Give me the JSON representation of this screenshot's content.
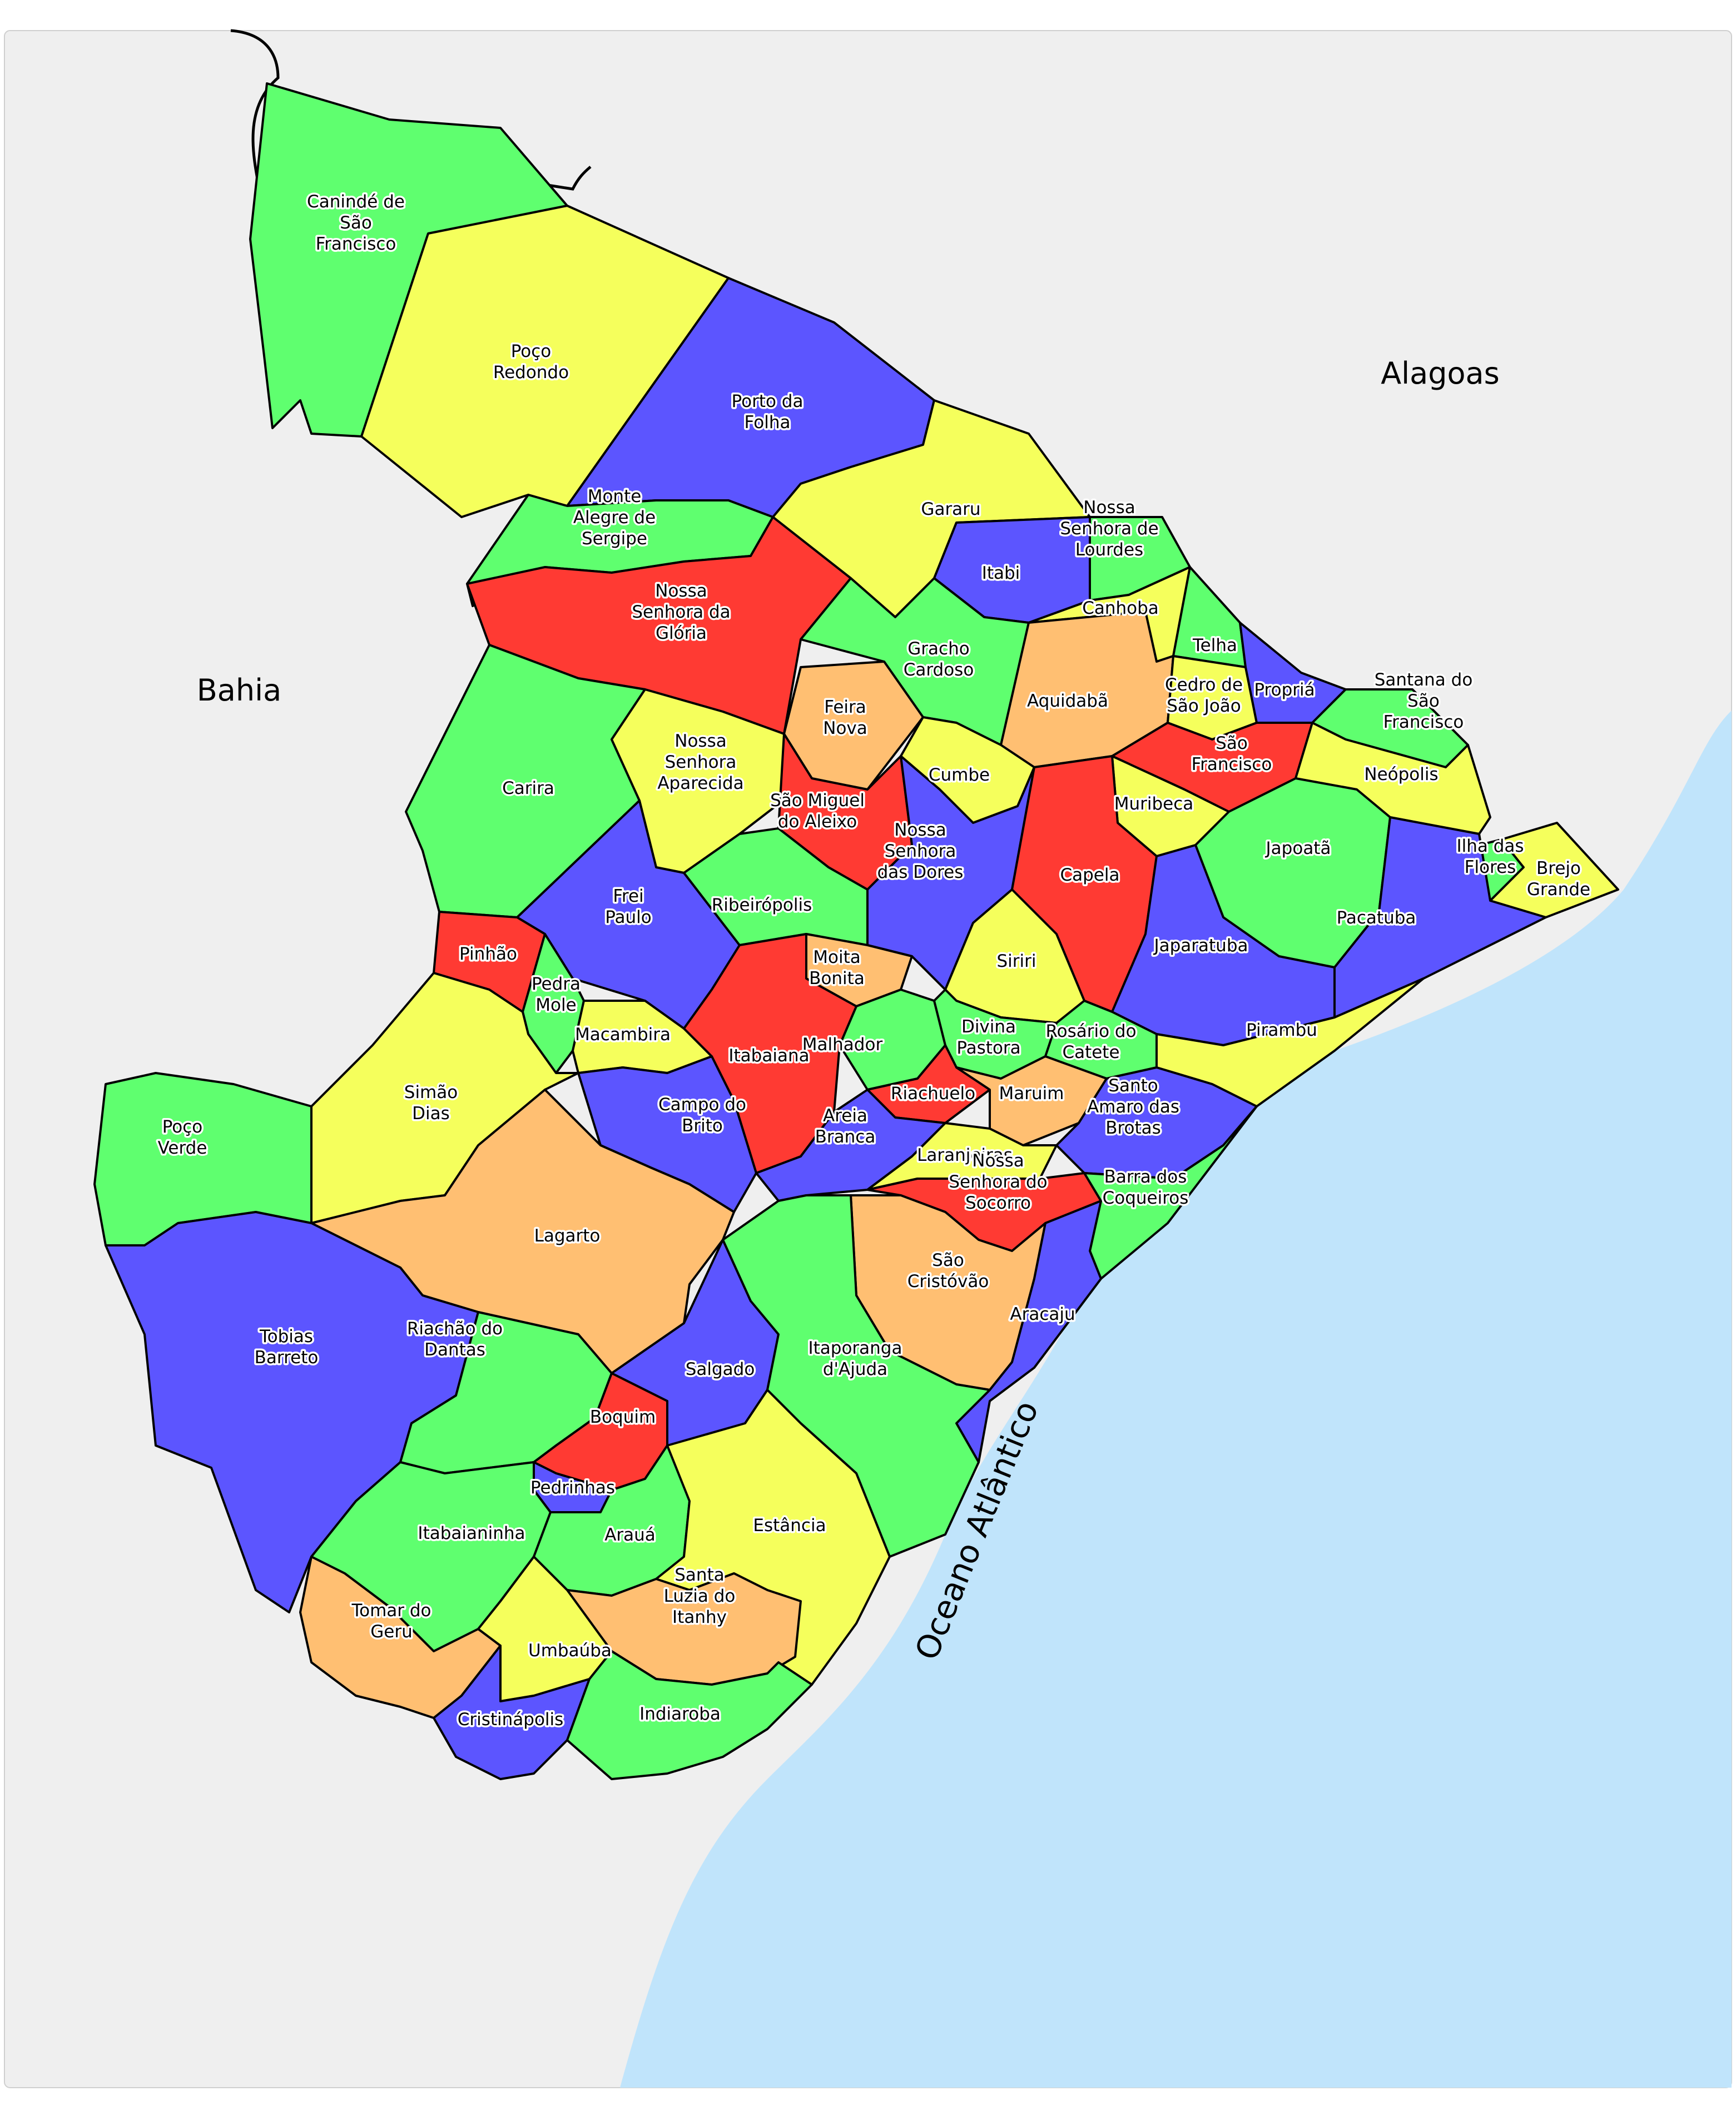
{
  "colors": {
    "green": "#5fff6f",
    "yellow": "#f5ff5c",
    "blue": "#5c55ff",
    "red": "#ff3a33",
    "orange": "#ffbf72",
    "ocean": "#c0e4fb",
    "neighbor": "#efefef"
  },
  "regions": {
    "bahia": "Bahia",
    "alagoas": "Alagoas",
    "ocean": "Oceano Atlântico"
  },
  "municipalities": [
    {
      "id": "caninde",
      "name": "Canindé de São Francisco",
      "lines": [
        "Canindé de",
        "São",
        "Francisco"
      ],
      "color": "green"
    },
    {
      "id": "poco-redondo",
      "name": "Poço Redondo",
      "lines": [
        "Poço",
        "Redondo"
      ],
      "color": "yellow"
    },
    {
      "id": "porto-da-folha",
      "name": "Porto da Folha",
      "lines": [
        "Porto da",
        "Folha"
      ],
      "color": "blue"
    },
    {
      "id": "gararu",
      "name": "Gararu",
      "lines": [
        "Gararu"
      ],
      "color": "yellow"
    },
    {
      "id": "monte-alegre",
      "name": "Monte Alegre de Sergipe",
      "lines": [
        "Monte",
        "Alegre de",
        "Sergipe"
      ],
      "color": "green"
    },
    {
      "id": "nsra-gloria",
      "name": "Nossa Senhora da Glória",
      "lines": [
        "Nossa",
        "Senhora da",
        "Glória"
      ],
      "color": "red"
    },
    {
      "id": "itabi",
      "name": "Itabi",
      "lines": [
        "Itabi"
      ],
      "color": "blue"
    },
    {
      "id": "nsra-lourdes",
      "name": "Nossa Senhora de Lourdes",
      "lines": [
        "Nossa",
        "Senhora de",
        "Lourdes"
      ],
      "color": "green"
    },
    {
      "id": "canhoba",
      "name": "Canhoba",
      "lines": [
        "Canhoba"
      ],
      "color": "yellow"
    },
    {
      "id": "telha",
      "name": "Telha",
      "lines": [
        "Telha"
      ],
      "color": "green"
    },
    {
      "id": "gracho-cardoso",
      "name": "Gracho Cardoso",
      "lines": [
        "Gracho",
        "Cardoso"
      ],
      "color": "green"
    },
    {
      "id": "aquidaba",
      "name": "Aquidabã",
      "lines": [
        "Aquidabã"
      ],
      "color": "orange"
    },
    {
      "id": "cedro",
      "name": "Cedro de São João",
      "lines": [
        "Cedro de",
        "São João"
      ],
      "color": "yellow"
    },
    {
      "id": "propria",
      "name": "Propriá",
      "lines": [
        "Propriá"
      ],
      "color": "blue"
    },
    {
      "id": "santana",
      "name": "Santana do São Francisco",
      "lines": [
        "Santana do",
        "São",
        "Francisco"
      ],
      "color": "green"
    },
    {
      "id": "sao-francisco",
      "name": "São Francisco",
      "lines": [
        "São",
        "Francisco"
      ],
      "color": "red"
    },
    {
      "id": "neopolis",
      "name": "Neópolis",
      "lines": [
        "Neópolis"
      ],
      "color": "yellow"
    },
    {
      "id": "feira-nova",
      "name": "Feira Nova",
      "lines": [
        "Feira",
        "Nova"
      ],
      "color": "orange"
    },
    {
      "id": "cumbe",
      "name": "Cumbe",
      "lines": [
        "Cumbe"
      ],
      "color": "yellow"
    },
    {
      "id": "muribeca",
      "name": "Muribeca",
      "lines": [
        "Muribeca"
      ],
      "color": "yellow"
    },
    {
      "id": "carira",
      "name": "Carira",
      "lines": [
        "Carira"
      ],
      "color": "green"
    },
    {
      "id": "nsra-aparecida",
      "name": "Nossa Senhora Aparecida",
      "lines": [
        "Nossa",
        "Senhora",
        "Aparecida"
      ],
      "color": "yellow"
    },
    {
      "id": "sao-miguel",
      "name": "São Miguel do Aleixo",
      "lines": [
        "São Miguel",
        "do Aleixo"
      ],
      "color": "red"
    },
    {
      "id": "nsra-dores",
      "name": "Nossa Senhora das Dores",
      "lines": [
        "Nossa",
        "Senhora",
        "das Dores"
      ],
      "color": "blue"
    },
    {
      "id": "capela",
      "name": "Capela",
      "lines": [
        "Capela"
      ],
      "color": "red"
    },
    {
      "id": "japoata",
      "name": "Japoatã",
      "lines": [
        "Japoatã"
      ],
      "color": "green"
    },
    {
      "id": "ilha-flores",
      "name": "Ilha das Flores",
      "lines": [
        "Ilha das",
        "Flores"
      ],
      "color": "green"
    },
    {
      "id": "brejo-grande",
      "name": "Brejo Grande",
      "lines": [
        "Brejo",
        "Grande"
      ],
      "color": "yellow"
    },
    {
      "id": "frei-paulo",
      "name": "Frei Paulo",
      "lines": [
        "Frei",
        "Paulo"
      ],
      "color": "blue"
    },
    {
      "id": "ribeiropolis",
      "name": "Ribeirópolis",
      "lines": [
        "Ribeirópolis"
      ],
      "color": "green"
    },
    {
      "id": "pinhao",
      "name": "Pinhão",
      "lines": [
        "Pinhão"
      ],
      "color": "red"
    },
    {
      "id": "pacatuba",
      "name": "Pacatuba",
      "lines": [
        "Pacatuba"
      ],
      "color": "blue"
    },
    {
      "id": "japaratuba",
      "name": "Japaratuba",
      "lines": [
        "Japaratuba"
      ],
      "color": "blue"
    },
    {
      "id": "siriri",
      "name": "Siriri",
      "lines": [
        "Siriri"
      ],
      "color": "yellow"
    },
    {
      "id": "moita-bonita",
      "name": "Moita Bonita",
      "lines": [
        "Moita",
        "Bonita"
      ],
      "color": "orange"
    },
    {
      "id": "pedra-mole",
      "name": "Pedra Mole",
      "lines": [
        "Pedra",
        "Mole"
      ],
      "color": "green"
    },
    {
      "id": "macambira",
      "name": "Macambira",
      "lines": [
        "Macambira"
      ],
      "color": "yellow"
    },
    {
      "id": "malhador",
      "name": "Malhador",
      "lines": [
        "Malhador"
      ],
      "color": "green"
    },
    {
      "id": "divina-pastora",
      "name": "Divina Pastora",
      "lines": [
        "Divina",
        "Pastora"
      ],
      "color": "green"
    },
    {
      "id": "rosario",
      "name": "Rosário do Catete",
      "lines": [
        "Rosário do",
        "Catete"
      ],
      "color": "green"
    },
    {
      "id": "pirambu",
      "name": "Pirambu",
      "lines": [
        "Pirambu"
      ],
      "color": "yellow"
    },
    {
      "id": "itabaiana",
      "name": "Itabaiana",
      "lines": [
        "Itabaiana"
      ],
      "color": "red"
    },
    {
      "id": "simao-dias",
      "name": "Simão Dias",
      "lines": [
        "Simão",
        "Dias"
      ],
      "color": "yellow"
    },
    {
      "id": "campo-brito",
      "name": "Campo do Brito",
      "lines": [
        "Campo do",
        "Brito"
      ],
      "color": "blue"
    },
    {
      "id": "riachuelo",
      "name": "Riachuelo",
      "lines": [
        "Riachuelo"
      ],
      "color": "red"
    },
    {
      "id": "maruim",
      "name": "Maruim",
      "lines": [
        "Maruim"
      ],
      "color": "orange"
    },
    {
      "id": "santo-amaro",
      "name": "Santo Amaro das Brotas",
      "lines": [
        "Santo",
        "Amaro das",
        "Brotas"
      ],
      "color": "blue"
    },
    {
      "id": "poco-verde",
      "name": "Poço Verde",
      "lines": [
        "Poço",
        "Verde"
      ],
      "color": "green"
    },
    {
      "id": "areia-branca",
      "name": "Areia Branca",
      "lines": [
        "Areia",
        "Branca"
      ],
      "color": "blue"
    },
    {
      "id": "laranjeiras",
      "name": "Laranjeiras",
      "lines": [
        "Laranjeiras"
      ],
      "color": "yellow"
    },
    {
      "id": "nsra-socorro",
      "name": "Nossa Senhora do Socorro",
      "lines": [
        "Nossa",
        "Senhora do",
        "Socorro"
      ],
      "color": "red"
    },
    {
      "id": "barra-coqueiros",
      "name": "Barra dos Coqueiros",
      "lines": [
        "Barra dos",
        "Coqueiros"
      ],
      "color": "green"
    },
    {
      "id": "lagarto",
      "name": "Lagarto",
      "lines": [
        "Lagarto"
      ],
      "color": "orange"
    },
    {
      "id": "sao-cristovao",
      "name": "São Cristóvão",
      "lines": [
        "São",
        "Cristóvão"
      ],
      "color": "orange"
    },
    {
      "id": "aracaju",
      "name": "Aracaju",
      "lines": [
        "Aracaju"
      ],
      "color": "blue"
    },
    {
      "id": "tobias-barreto",
      "name": "Tobias Barreto",
      "lines": [
        "Tobias",
        "Barreto"
      ],
      "color": "blue"
    },
    {
      "id": "riachao",
      "name": "Riachão do Dantas",
      "lines": [
        "Riachão do",
        "Dantas"
      ],
      "color": "green"
    },
    {
      "id": "salgado",
      "name": "Salgado",
      "lines": [
        "Salgado"
      ],
      "color": "blue"
    },
    {
      "id": "itaporanga",
      "name": "Itaporanga d'Ajuda",
      "lines": [
        "Itaporanga",
        "d'Ajuda"
      ],
      "color": "green"
    },
    {
      "id": "boquim",
      "name": "Boquim",
      "lines": [
        "Boquim"
      ],
      "color": "red"
    },
    {
      "id": "pedrinhas",
      "name": "Pedrinhas",
      "lines": [
        "Pedrinhas"
      ],
      "color": "blue"
    },
    {
      "id": "itabaianinha",
      "name": "Itabaianinha",
      "lines": [
        "Itabaianinha"
      ],
      "color": "green"
    },
    {
      "id": "araua",
      "name": "Arauá",
      "lines": [
        "Arauá"
      ],
      "color": "green"
    },
    {
      "id": "estancia",
      "name": "Estância",
      "lines": [
        "Estância"
      ],
      "color": "yellow"
    },
    {
      "id": "santa-luzia",
      "name": "Santa Luzia do Itanhy",
      "lines": [
        "Santa",
        "Luzia do",
        "Itanhy"
      ],
      "color": "orange"
    },
    {
      "id": "tomar-geru",
      "name": "Tomar do Geru",
      "lines": [
        "Tomar do",
        "Geru"
      ],
      "color": "orange"
    },
    {
      "id": "umbauba",
      "name": "Umbaúba",
      "lines": [
        "Umbaúba"
      ],
      "color": "yellow"
    },
    {
      "id": "cristinapolis",
      "name": "Cristinápolis",
      "lines": [
        "Cristinápolis"
      ],
      "color": "blue"
    },
    {
      "id": "indiaroba",
      "name": "Indiaroba",
      "lines": [
        "Indiaroba"
      ],
      "color": "green"
    }
  ]
}
